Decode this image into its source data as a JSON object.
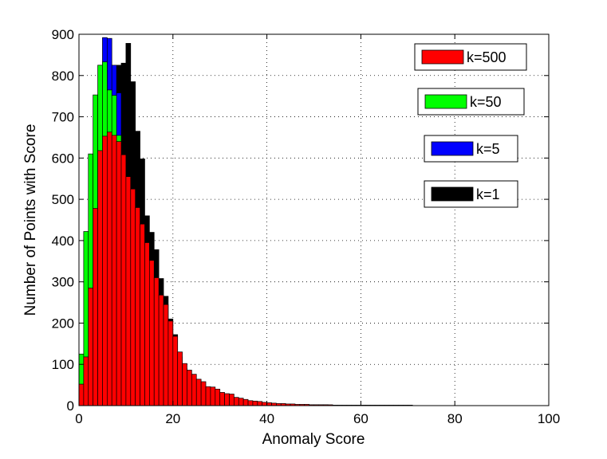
{
  "chart_data": {
    "type": "bar",
    "xlabel": "Anomaly Score",
    "ylabel": "Number of Points with Score",
    "xlim": [
      0,
      100
    ],
    "ylim": [
      0,
      900
    ],
    "xticks": [
      0,
      20,
      40,
      60,
      80,
      100
    ],
    "yticks": [
      0,
      100,
      200,
      300,
      400,
      500,
      600,
      700,
      800,
      900
    ],
    "grid": true,
    "legend_position": "right",
    "bin_width": 1,
    "x": [
      0.5,
      1.5,
      2.5,
      3.5,
      4.5,
      5.5,
      6.5,
      7.5,
      8.5,
      9.5,
      10.5,
      11.5,
      12.5,
      13.5,
      14.5,
      15.5,
      16.5,
      17.5,
      18.5,
      19.5,
      20.5,
      21.5,
      22.5,
      23.5,
      24.5,
      25.5,
      26.5,
      27.5,
      28.5,
      29.5,
      30.5,
      31.5,
      32.5,
      33.5,
      34.5,
      35.5,
      36.5,
      37.5,
      38.5,
      39.5,
      40.5,
      41.5,
      42.5,
      43.5,
      44.5,
      45.5,
      46.5,
      47.5,
      48.5,
      49.5,
      50.5,
      51.5,
      52.5,
      53.5,
      54.5,
      55.5,
      56.5,
      57.5,
      58.5,
      59.5,
      60.5,
      61.5,
      62.5,
      63.5,
      64.5,
      65.5,
      66.5,
      67.5,
      68.5,
      69.5,
      70.5
    ],
    "series": [
      {
        "name": "k=1",
        "color": "#000000",
        "values": [
          0,
          0,
          0,
          0,
          0,
          0,
          0,
          0,
          825,
          830,
          878,
          785,
          665,
          598,
          460,
          420,
          378,
          308,
          265,
          210,
          172,
          118,
          90,
          72,
          55,
          42,
          35,
          28,
          22,
          18,
          15,
          12,
          10,
          9,
          8,
          7,
          6,
          5,
          4,
          4,
          3,
          3,
          3,
          3,
          3,
          2,
          2,
          2,
          2,
          2,
          2,
          2,
          2,
          1,
          1,
          1,
          1,
          1,
          1,
          1,
          1,
          1,
          1,
          1,
          1,
          1,
          1,
          1,
          1,
          1,
          1
        ]
      },
      {
        "name": "k=5",
        "color": "#0000ff",
        "values": [
          0,
          0,
          0,
          0,
          0,
          892,
          890,
          825,
          758,
          580,
          0,
          0,
          0,
          0,
          0,
          0,
          0,
          0,
          0,
          0,
          0,
          0,
          0,
          0,
          0,
          0,
          0,
          0,
          0,
          0,
          0,
          0,
          0,
          0,
          0,
          0,
          0,
          0,
          0,
          0,
          0,
          0,
          0,
          0,
          0,
          0,
          0,
          0,
          0,
          0,
          0,
          0,
          0,
          0,
          0,
          0,
          0,
          0,
          0,
          0,
          0,
          0,
          0,
          0,
          0,
          0,
          0,
          0,
          0,
          0,
          0
        ]
      },
      {
        "name": "k=50",
        "color": "#00ff00",
        "values": [
          125,
          422,
          610,
          753,
          825,
          833,
          765,
          752,
          655,
          0,
          0,
          0,
          0,
          0,
          0,
          0,
          0,
          0,
          0,
          0,
          0,
          0,
          0,
          0,
          0,
          0,
          0,
          0,
          0,
          0,
          0,
          0,
          0,
          0,
          0,
          0,
          0,
          0,
          0,
          0,
          0,
          0,
          0,
          0,
          0,
          0,
          0,
          0,
          0,
          0,
          0,
          0,
          0,
          0,
          0,
          0,
          0,
          0,
          0,
          0,
          0,
          0,
          0,
          0,
          0,
          0,
          0,
          0,
          0,
          0,
          0
        ]
      },
      {
        "name": "k=500",
        "color": "#ff0000",
        "values": [
          52,
          118,
          285,
          478,
          618,
          653,
          663,
          655,
          640,
          608,
          555,
          525,
          480,
          440,
          395,
          352,
          310,
          268,
          245,
          205,
          168,
          130,
          102,
          86,
          76,
          64,
          58,
          46,
          45,
          40,
          32,
          29,
          28,
          20,
          18,
          15,
          12,
          11,
          10,
          8,
          7,
          6,
          5,
          5,
          4,
          4,
          3,
          3,
          3,
          2,
          2,
          2,
          2,
          2,
          1,
          1,
          1,
          1,
          1,
          1,
          1,
          1,
          1,
          1,
          1,
          1,
          1,
          1,
          1,
          1,
          1
        ]
      }
    ],
    "legend": [
      "k=500",
      "k=50",
      "k=5",
      "k=1"
    ]
  }
}
